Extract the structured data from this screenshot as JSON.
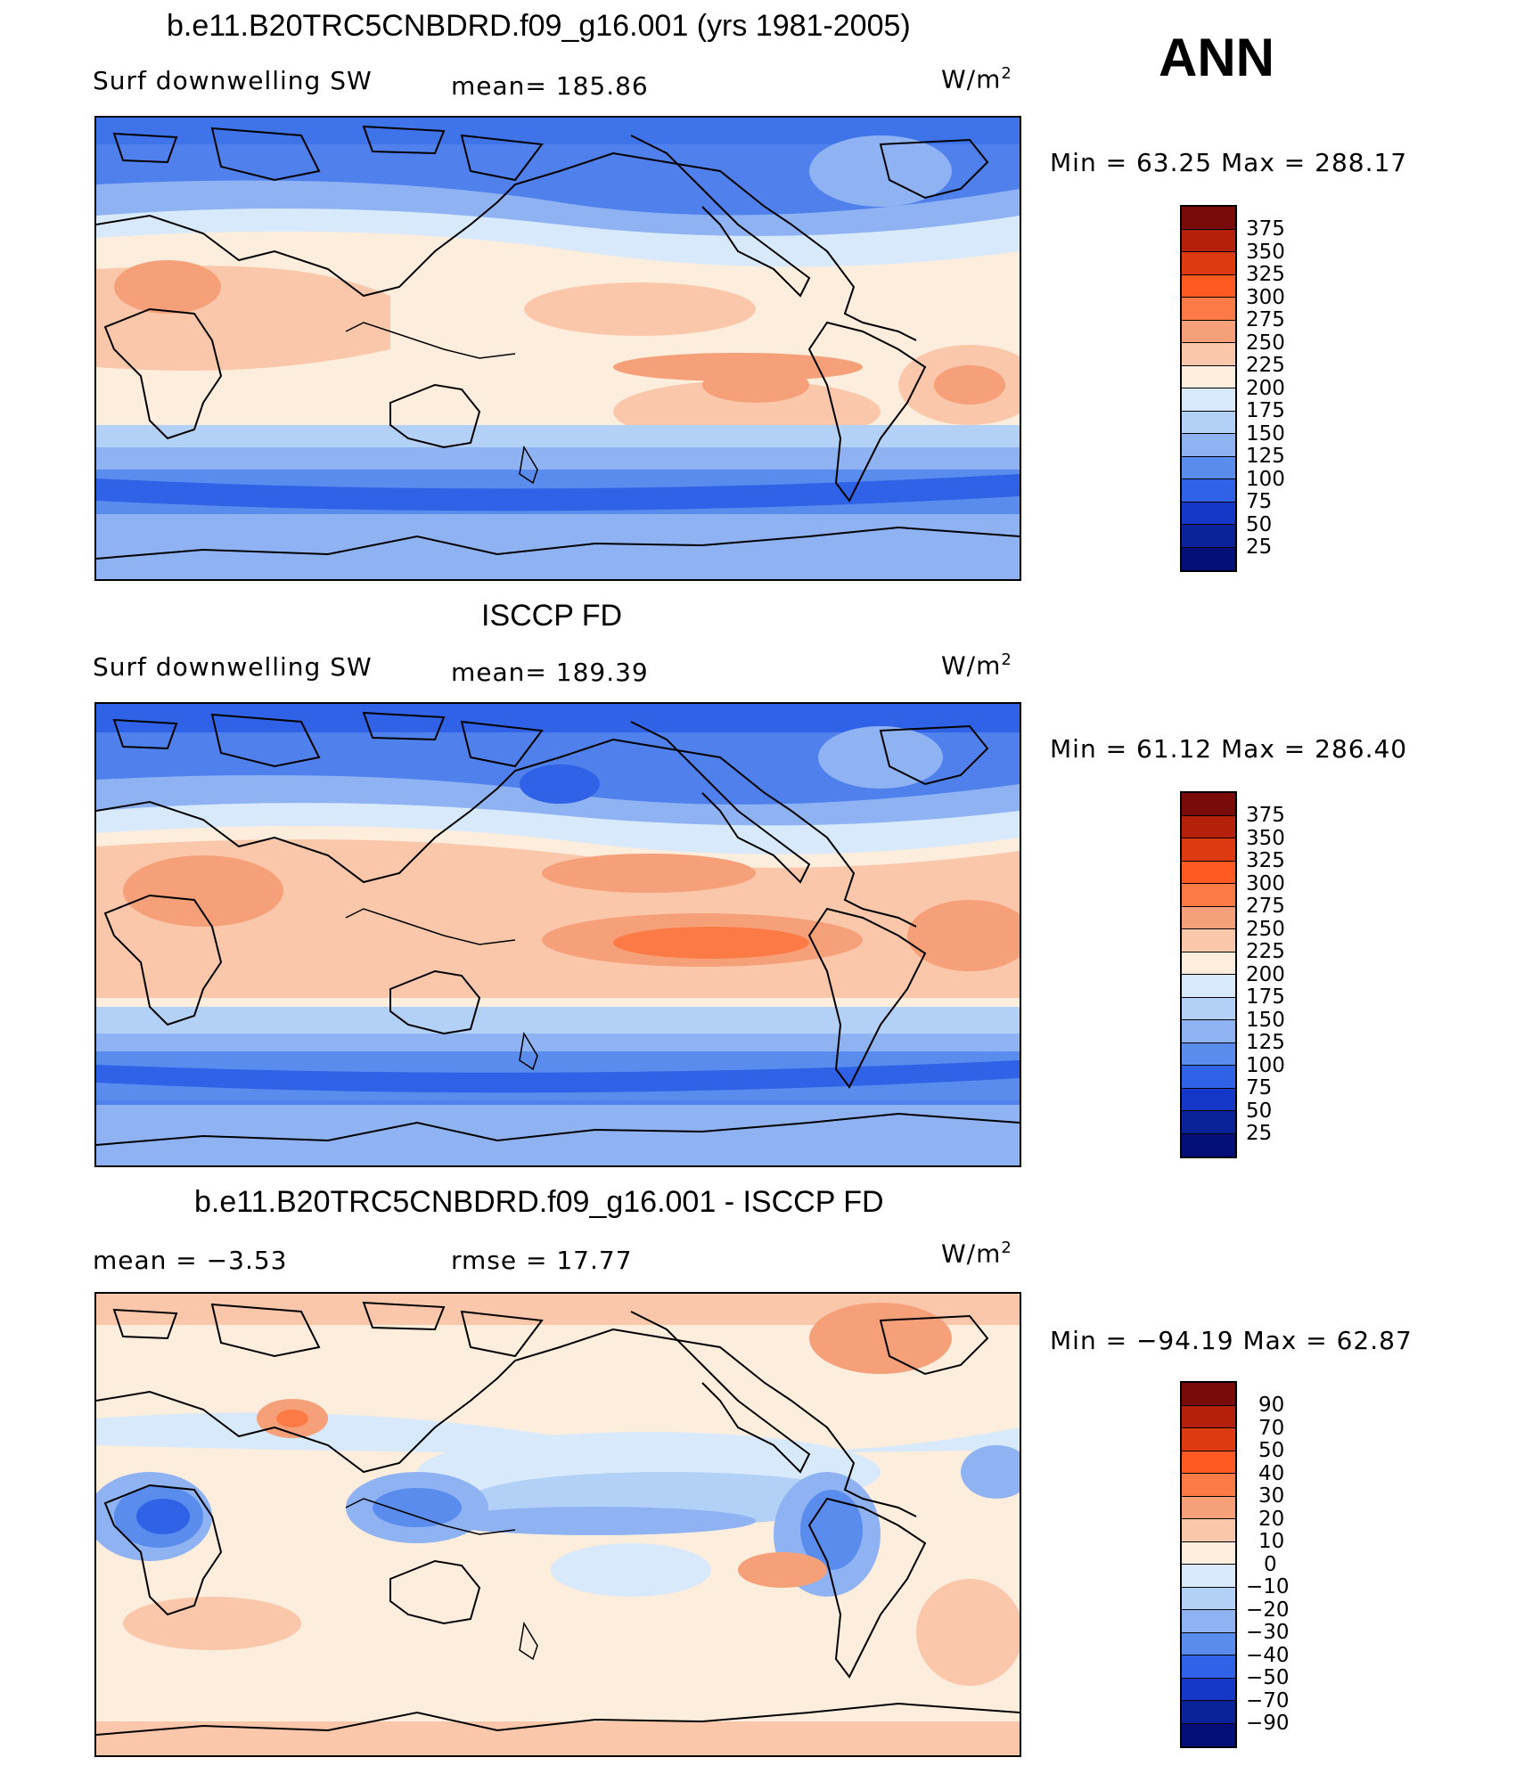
{
  "header": {
    "season": "ANN"
  },
  "panels": [
    {
      "id": "model",
      "title": "b.e11.B20TRC5CNBDRD.f09_g16.001 (yrs 1981-2005)",
      "left_label": "Surf  downwelling  SW",
      "center_label": "mean=  185.86",
      "unit_base": "W/m",
      "unit_exp": "2",
      "stats": "Min  =    63.25  Max  =  288.17",
      "colorbar_ticks": [
        "375",
        "350",
        "325",
        "300",
        "275",
        "250",
        "225",
        "200",
        "175",
        "150",
        "125",
        "100",
        "75",
        "50",
        "25"
      ]
    },
    {
      "id": "obs",
      "title": "ISCCP FD",
      "left_label": "Surf  downwelling  SW",
      "center_label": "mean=  189.39",
      "unit_base": "W/m",
      "unit_exp": "2",
      "stats": "Min  =    61.12  Max  =  286.40",
      "colorbar_ticks": [
        "375",
        "350",
        "325",
        "300",
        "275",
        "250",
        "225",
        "200",
        "175",
        "150",
        "125",
        "100",
        "75",
        "50",
        "25"
      ]
    },
    {
      "id": "diff",
      "title": "b.e11.B20TRC5CNBDRD.f09_g16.001 - ISCCP FD",
      "left_label": "mean  =    −3.53",
      "center_label": "rmse  =    17.77",
      "unit_base": "W/m",
      "unit_exp": "2",
      "stats": "Min  =  −94.19  Max  =    62.87",
      "colorbar_ticks": [
        "90",
        "70",
        "50",
        "40",
        "30",
        "20",
        "10",
        "0",
        "−10",
        "−20",
        "−30",
        "−40",
        "−50",
        "−70",
        "−90"
      ]
    }
  ],
  "colors": {
    "colorbar_top_to_bottom": [
      "#7a0b0b",
      "#b5200a",
      "#de3a12",
      "#ff5a22",
      "#fb7a45",
      "#f6a07a",
      "#fbc7ab",
      "#fdeddc",
      "#d7e9fb",
      "#b3d0f7",
      "#8fb2f3",
      "#5a8cee",
      "#2f62e6",
      "#1638c8",
      "#0b2399",
      "#050f78"
    ]
  }
}
